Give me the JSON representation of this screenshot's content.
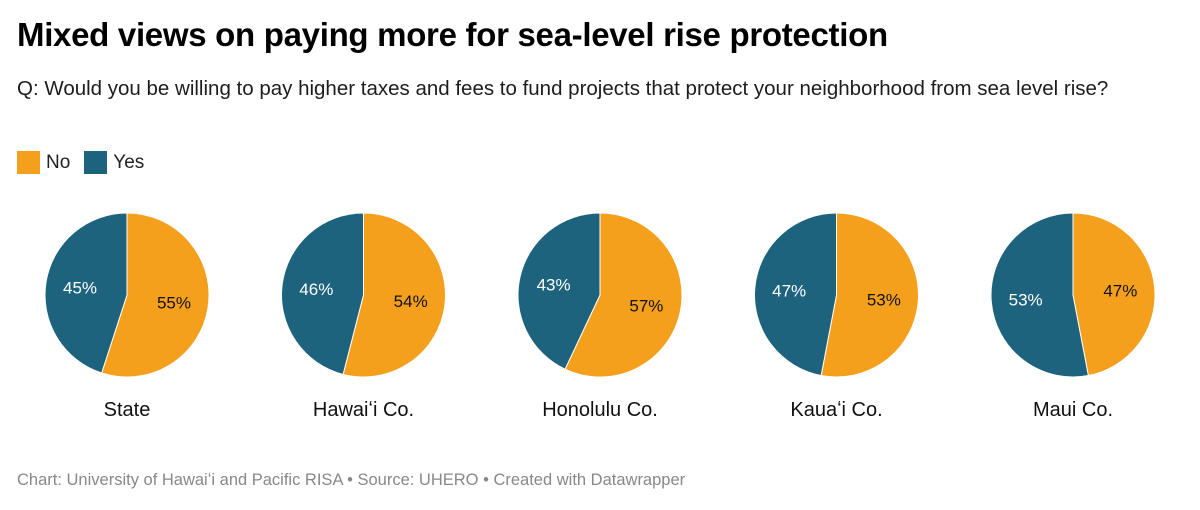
{
  "header": {
    "title": "Mixed views on paying more for sea-level rise protection",
    "subtitle": "Q: Would you be willing to pay higher taxes and fees to fund projects that protect your neighborhood from sea level rise?"
  },
  "legend": [
    {
      "label": "No",
      "color": "#f5a01d"
    },
    {
      "label": "Yes",
      "color": "#1e637e"
    }
  ],
  "footer": "Chart: University of Hawaiʻi and Pacific RISA • Source: UHERO • Created with Datawrapper",
  "chart_data": {
    "type": "pie",
    "title": "Mixed views on paying more for sea-level rise protection",
    "legend_position": "top-left",
    "series_names": [
      "No",
      "Yes"
    ],
    "colors": {
      "No": "#f5a01d",
      "Yes": "#1e637e"
    },
    "label_colors": {
      "No": "#111111",
      "Yes": "#ffffff"
    },
    "pies": [
      {
        "name": "State",
        "values": {
          "No": 55,
          "Yes": 45
        }
      },
      {
        "name": "Hawaiʻi Co.",
        "values": {
          "No": 54,
          "Yes": 46
        }
      },
      {
        "name": "Honolulu Co.",
        "values": {
          "No": 57,
          "Yes": 43
        }
      },
      {
        "name": "Kauaʻi Co.",
        "values": {
          "No": 53,
          "Yes": 47
        }
      },
      {
        "name": "Maui Co.",
        "values": {
          "No": 47,
          "Yes": 53
        }
      }
    ],
    "value_suffix": "%"
  }
}
